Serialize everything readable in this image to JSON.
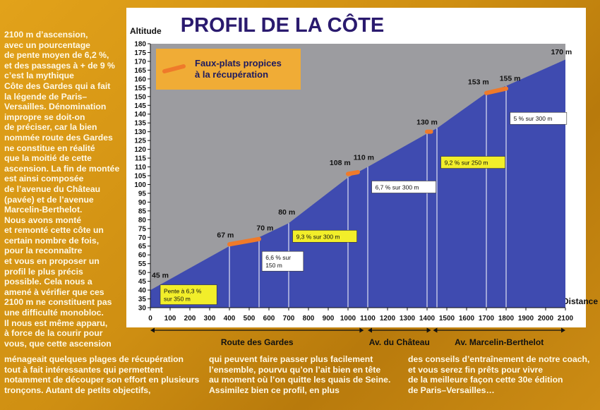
{
  "chart_data": {
    "type": "area",
    "title": "PROFIL DE LA CÔTE",
    "ylabel": "Altitude",
    "xlabel": "Distance",
    "ylim": [
      30,
      180
    ],
    "xlim": [
      0,
      2100
    ],
    "yticks": [
      30,
      35,
      40,
      45,
      50,
      55,
      60,
      65,
      70,
      75,
      80,
      85,
      90,
      95,
      100,
      105,
      110,
      115,
      120,
      125,
      130,
      135,
      140,
      145,
      150,
      155,
      160,
      165,
      170,
      175,
      180
    ],
    "xticks": [
      0,
      100,
      200,
      300,
      400,
      500,
      600,
      700,
      800,
      900,
      1000,
      1100,
      1200,
      1300,
      1400,
      1500,
      1600,
      1700,
      1800,
      1900,
      2000,
      2100
    ],
    "profile": [
      {
        "x": 0,
        "y": 40
      },
      {
        "x": 400,
        "y": 65
      },
      {
        "x": 550,
        "y": 70
      },
      {
        "x": 700,
        "y": 78
      },
      {
        "x": 1000,
        "y": 104
      },
      {
        "x": 1100,
        "y": 110
      },
      {
        "x": 1400,
        "y": 129
      },
      {
        "x": 1450,
        "y": 132
      },
      {
        "x": 1700,
        "y": 152
      },
      {
        "x": 1800,
        "y": 156
      },
      {
        "x": 2100,
        "y": 171
      }
    ],
    "flats": [
      {
        "x1": 400,
        "x2": 550,
        "y1": 66,
        "y2": 69
      },
      {
        "x1": 1000,
        "x2": 1050,
        "y1": 106,
        "y2": 107
      },
      {
        "x1": 1400,
        "x2": 1420,
        "y1": 130,
        "y2": 130
      },
      {
        "x1": 1700,
        "x2": 1800,
        "y1": 152,
        "y2": 154.5
      }
    ],
    "altitude_labels": [
      {
        "text": "45 m",
        "x": 50,
        "y": 47
      },
      {
        "text": "67 m",
        "x": 380,
        "y": 70
      },
      {
        "text": "70 m",
        "x": 580,
        "y": 74
      },
      {
        "text": "80 m",
        "x": 690,
        "y": 83
      },
      {
        "text": "108 m",
        "x": 960,
        "y": 111
      },
      {
        "text": "110 m",
        "x": 1080,
        "y": 114
      },
      {
        "text": "130 m",
        "x": 1400,
        "y": 134
      },
      {
        "text": "153 m",
        "x": 1660,
        "y": 157
      },
      {
        "text": "155 m",
        "x": 1820,
        "y": 159
      },
      {
        "text": "170 m",
        "x": 2080,
        "y": 174
      }
    ],
    "dividers": [
      400,
      550,
      700,
      1000,
      1100,
      1400,
      1450,
      1700,
      1800
    ],
    "gradient_boxes": [
      {
        "lines": [
          "Pente à 6,3 %",
          "sur 350 m"
        ],
        "x": 50,
        "y": 43,
        "fill": "#f2ee2a"
      },
      {
        "lines": [
          "6,6 % sur",
          "150 m"
        ],
        "x": 565,
        "y": 62,
        "fill": "#ffffff"
      },
      {
        "lines": [
          "9,3 % sur 300 m"
        ],
        "x": 720,
        "y": 74,
        "fill": "#f2ee2a"
      },
      {
        "lines": [
          "6,7 % sur 300 m"
        ],
        "x": 1120,
        "y": 102,
        "fill": "#ffffff"
      },
      {
        "lines": [
          "9,2 % sur 250 m"
        ],
        "x": 1470,
        "y": 116,
        "fill": "#f2ee2a"
      },
      {
        "lines": [
          "5 % sur 300 m"
        ],
        "x": 1820,
        "y": 141,
        "fill": "#ffffff"
      }
    ],
    "legend": {
      "text": "Faux-plats propices\nà la récupération",
      "placement": "top-left"
    },
    "segments": [
      {
        "label": "Route des Gardes",
        "x1": 0,
        "x2": 1080
      },
      {
        "label": "Av. du Château",
        "x1": 1100,
        "x2": 1420
      },
      {
        "label": "Av. Marcelin-Berthelot",
        "x1": 1430,
        "x2": 2100
      }
    ],
    "colors": {
      "area": "#3f4bb0",
      "sky": "#9c9ca0",
      "flat": "#ef7a2a",
      "panel": "#ffffff",
      "legend": "#f0ac36"
    }
  },
  "text": {
    "sidebar": "2100 m d’ascension,\navec un pourcentage\nde pente moyen de 6,2 %,\net des passages à + de 9 %\nc’est la mythique\nCôte des Gardes qui a fait\nla légende de Paris–\nVersailles. Dénomination\nimpropre se doit-on\nde préciser, car la bien\nnommée route des Gardes\nne constitue en réalité\nque la moitié de cette\nascension. La fin de montée\nest ainsi composée\nde l’avenue du Château\n(pavée) et de l’avenue\nMarcelin-Berthelot.\nNous avons monté\net remonté cette côte un\ncertain nombre de fois,\npour la reconnaître\net vous en proposer un\nprofil le plus précis\npossible. Cela nous a\namené à vérifier que ces\n2100 m ne constituent pas\nune difficulté monobloc.\nIl nous est même apparu,\nà force de la courir pour\nvous, que cette ascension",
    "bottom_left": "ménageait quelques plages de récupération\ntout à fait intéressantes qui permettent\nnotamment de découper son effort en plusieurs\ntronçons. Autant de petits objectifs,",
    "bottom_mid": "qui peuvent faire passer plus facilement\nl’ensemble, pourvu qu’on l’ait bien en tête\nau moment où l’on quitte les quais de Seine.\nAssimilez bien ce profil, en plus",
    "bottom_right": "des conseils d’entraînement de notre coach,\net vous serez fin prêts pour vivre\nde la meilleure façon cette 30e édition\nde Paris–Versailles…"
  }
}
